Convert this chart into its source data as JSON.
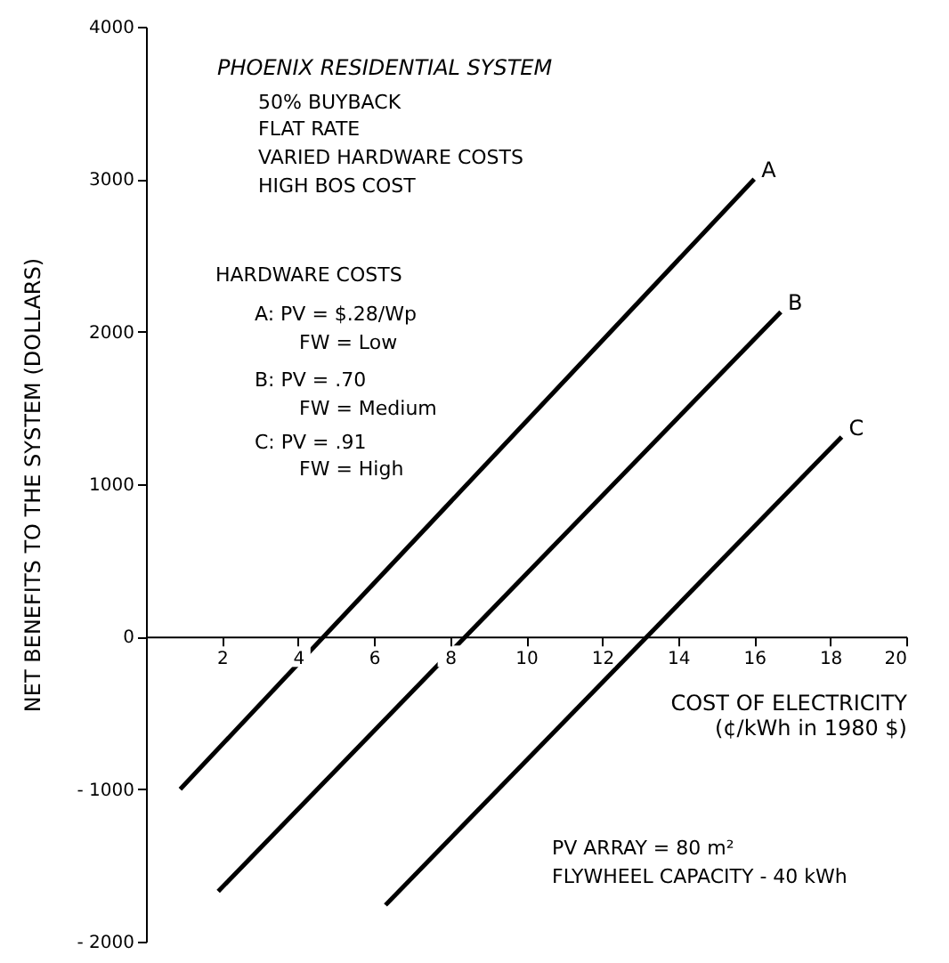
{
  "chart_data": {
    "type": "line",
    "title": "PHOENIX RESIDENTIAL SYSTEM",
    "xlabel": "COST OF ELECTRICITY\n(¢/kWh in 1980 $)",
    "ylabel": "NET BENEFITS TO THE SYSTEM (DOLLARS)",
    "series": [
      {
        "name": "A",
        "color": "#000000",
        "x": [
          0.9,
          16.0
        ],
        "values": [
          -1000,
          3000
        ]
      },
      {
        "name": "B",
        "color": "#000000",
        "x": [
          1.9,
          16.7
        ],
        "values": [
          -1670,
          2130
        ]
      },
      {
        "name": "C",
        "color": "#000000",
        "x": [
          6.3,
          18.3
        ],
        "values": [
          -1760,
          1310
        ]
      }
    ],
    "xlim": [
      0,
      20
    ],
    "xticks": [
      2,
      4,
      6,
      8,
      10,
      12,
      14,
      16,
      18,
      20
    ],
    "ylim": [
      -2000,
      4000
    ],
    "yticks": [
      -2000,
      -1000,
      0,
      1000,
      2000,
      3000,
      4000
    ],
    "grid": false,
    "marker": "none",
    "line_style": "solid",
    "annotations": [
      "50% BUYBACK",
      "FLAT RATE",
      "VARIED HARDWARE COSTS",
      "HIGH BOS COST",
      "HARDWARE COSTS",
      "A: PV = $.28/Wp",
      "FW = Low",
      "B: PV = .70",
      "FW = Medium",
      "C: PV = .91",
      "FW = High",
      "PV ARRAY = 80 m²",
      "FLYWHEEL CAPACITY - 40 kWh"
    ]
  }
}
